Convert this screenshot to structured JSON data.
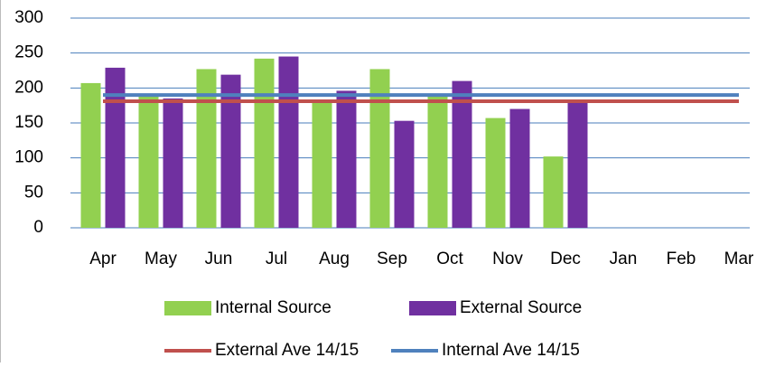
{
  "chart_data": {
    "type": "bar",
    "categories": [
      "Apr",
      "May",
      "Jun",
      "Jul",
      "Aug",
      "Sep",
      "Oct",
      "Nov",
      "Dec",
      "Jan",
      "Feb",
      "Mar"
    ],
    "series": [
      {
        "name": "Internal Source",
        "type": "bar",
        "color": "#92d050",
        "values": [
          207,
          188,
          227,
          242,
          181,
          227,
          188,
          157,
          102,
          null,
          null,
          null
        ]
      },
      {
        "name": "External Source",
        "type": "bar",
        "color": "#7030a0",
        "values": [
          229,
          185,
          219,
          245,
          196,
          153,
          210,
          170,
          180,
          null,
          null,
          null
        ]
      },
      {
        "name": "External Ave 14/15",
        "type": "line",
        "color": "#c0504d",
        "values": [
          181,
          181,
          181,
          181,
          181,
          181,
          181,
          181,
          181,
          181,
          181,
          181
        ]
      },
      {
        "name": "Internal Ave 14/15",
        "type": "line",
        "color": "#4f81bd",
        "values": [
          190,
          190,
          190,
          190,
          190,
          190,
          190,
          190,
          190,
          190,
          190,
          190
        ]
      }
    ],
    "ylim": [
      0,
      300
    ],
    "yticks": [
      0,
      50,
      100,
      150,
      200,
      250,
      300
    ],
    "grid": true
  }
}
